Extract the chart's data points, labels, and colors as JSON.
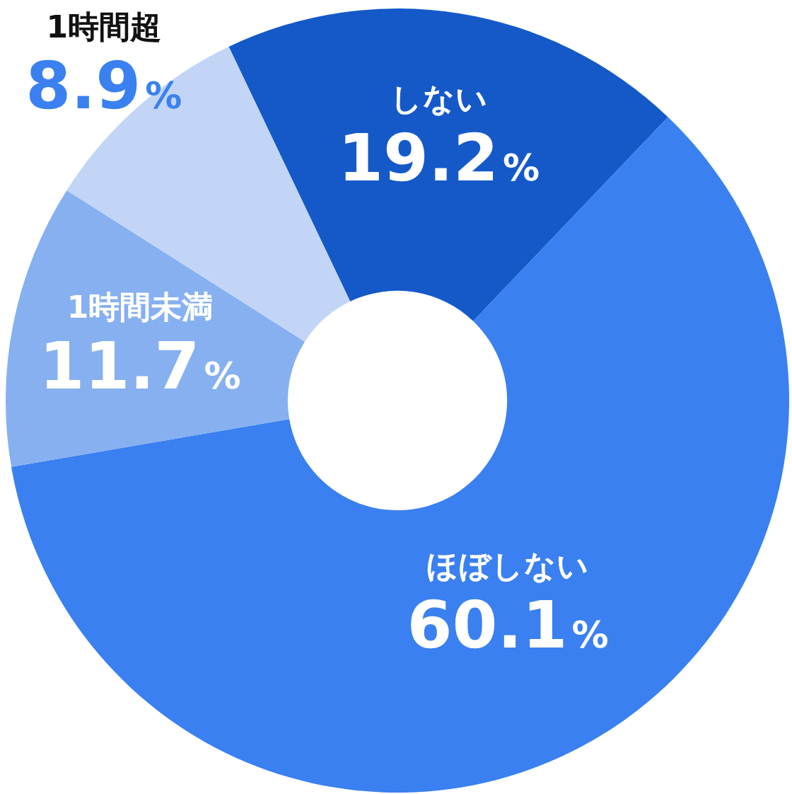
{
  "chart_data": {
    "type": "donut",
    "categories": [
      "しない",
      "ほぼしない",
      "1時間未満",
      "1時間超"
    ],
    "values": [
      19.2,
      60.1,
      11.7,
      8.9
    ],
    "colors": [
      "#1559c9",
      "#3a80f0",
      "#86b0f0",
      "#c2d5f7"
    ],
    "value_labels": [
      "19.2%",
      "60.1%",
      "11.7%",
      "8.9%"
    ],
    "legend": false
  }
}
